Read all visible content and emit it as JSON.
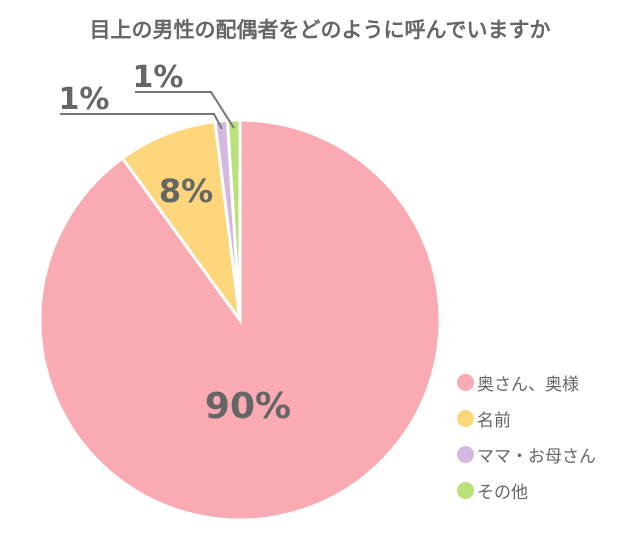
{
  "chart_data": {
    "type": "pie",
    "title": "目上の男性の配偶者をどのように呼んでいますか",
    "start": "top, clockwise",
    "legend_position": "bottom-right",
    "slices": [
      {
        "label": "奥さん、奥様",
        "value": 90,
        "data_label": "90%",
        "color": "#f9aab3"
      },
      {
        "label": "名前",
        "value": 8,
        "data_label": "8%",
        "color": "#fdd57a"
      },
      {
        "label": "ママ・お母さん",
        "value": 1,
        "data_label": "1%",
        "color": "#d4b8e0"
      },
      {
        "label": "その他",
        "value": 1,
        "data_label": "1%",
        "color": "#b9e27a"
      }
    ]
  }
}
